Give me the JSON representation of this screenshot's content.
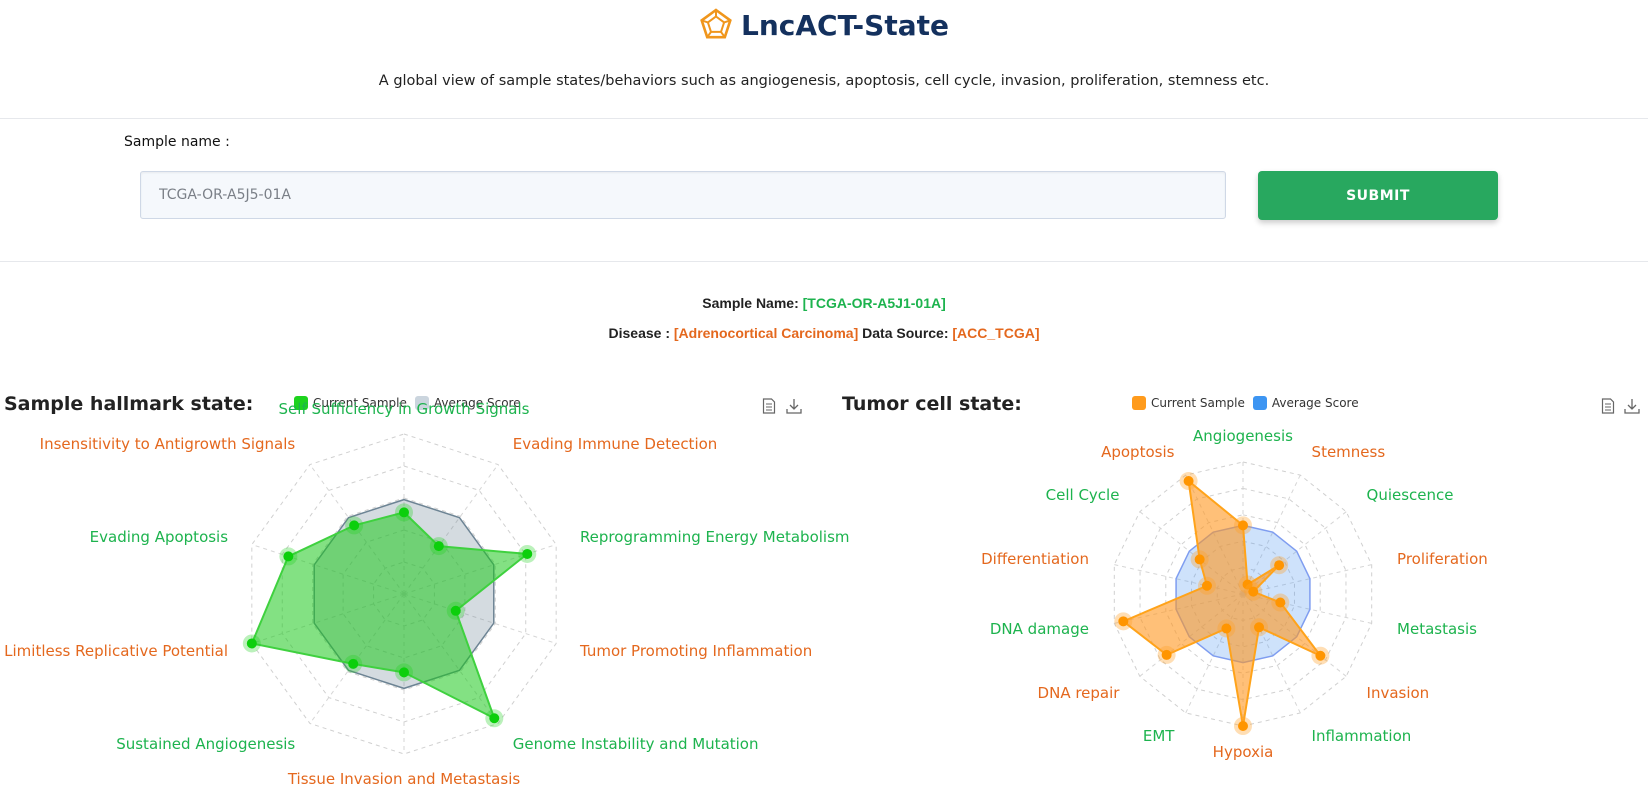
{
  "header": {
    "title": "LncACT-State",
    "subtitle": "A global view of sample states/behaviors such as angiogenesis, apoptosis, cell cycle, invasion, proliferation, stemness etc."
  },
  "search": {
    "label": "Sample name :",
    "placeholder": "TCGA-OR-A5J5-01A",
    "value": "",
    "submit_label": "SUBMIT"
  },
  "info": {
    "sample_key": "Sample Name:",
    "sample_value": "[TCGA-OR-A5J1-01A]",
    "disease_key": "Disease :",
    "disease_value": "[Adrenocortical Carcinoma]",
    "source_key": "Data Source:",
    "source_value": "[ACC_TCGA]"
  },
  "icons": {
    "logo": "pentagon-logo-icon",
    "data_view": "document-icon",
    "download": "download-icon"
  },
  "colors": {
    "brand": "#14315e",
    "logo": "#f0961c",
    "submit": "#28a85f",
    "label_green": "#1db34e",
    "label_orange": "#e4681e",
    "hallmark_current": "#1ed31e",
    "hallmark_average": "#cbd5de",
    "tumor_current": "#ff9b1c",
    "tumor_average": "#3d95f2"
  },
  "chart_data": [
    {
      "type": "radar",
      "title": "Sample hallmark state:",
      "legend": [
        "Current Sample",
        "Average Score"
      ],
      "legend_position": "top",
      "grid": true,
      "range": [
        0,
        1
      ],
      "axes": [
        "Self Sufficiency in Growth Signals",
        "Evading Immune Detection",
        "Reprogramming Energy Metabolism",
        "Tumor Promoting Inflammation",
        "Genome Instability and Mutation",
        "Tissue Invasion and Metastasis",
        "Sustained Angiogenesis",
        "Limitless Replicative Potential",
        "Evading Apoptosis",
        "Insensitivity to Antigrowth Signals"
      ],
      "axis_label_colors": [
        "green",
        "orange",
        "green",
        "orange",
        "green",
        "orange",
        "green",
        "orange",
        "green",
        "orange"
      ],
      "series": [
        {
          "name": "Current Sample",
          "values": [
            0.51,
            0.37,
            0.81,
            0.34,
            0.96,
            0.49,
            0.54,
            1.0,
            0.76,
            0.53
          ]
        },
        {
          "name": "Average Score",
          "values": [
            0.59,
            0.59,
            0.59,
            0.59,
            0.59,
            0.59,
            0.59,
            0.59,
            0.59,
            0.59
          ]
        }
      ]
    },
    {
      "type": "radar",
      "title": "Tumor cell state:",
      "legend": [
        "Current Sample",
        "Average Score"
      ],
      "legend_position": "top",
      "grid": true,
      "range": [
        0,
        1
      ],
      "axes": [
        "Angiogenesis",
        "Stemness",
        "Quiescence",
        "Proliferation",
        "Metastasis",
        "Invasion",
        "Inflammation",
        "Hypoxia",
        "EMT",
        "DNA repair",
        "DNA damage",
        "Differentiation",
        "Cell Cycle",
        "Apoptosis"
      ],
      "axis_label_colors": [
        "green",
        "orange",
        "green",
        "orange",
        "green",
        "orange",
        "green",
        "orange",
        "green",
        "orange",
        "green",
        "orange",
        "green",
        "orange"
      ],
      "series": [
        {
          "name": "Current Sample",
          "values": [
            0.52,
            0.08,
            0.35,
            0.08,
            0.29,
            0.75,
            0.28,
            1.0,
            0.29,
            0.74,
            0.93,
            0.28,
            0.42,
            0.95
          ]
        },
        {
          "name": "Average Score",
          "values": [
            0.52,
            0.52,
            0.52,
            0.52,
            0.52,
            0.52,
            0.52,
            0.52,
            0.52,
            0.52,
            0.52,
            0.52,
            0.52,
            0.52
          ]
        }
      ]
    }
  ]
}
